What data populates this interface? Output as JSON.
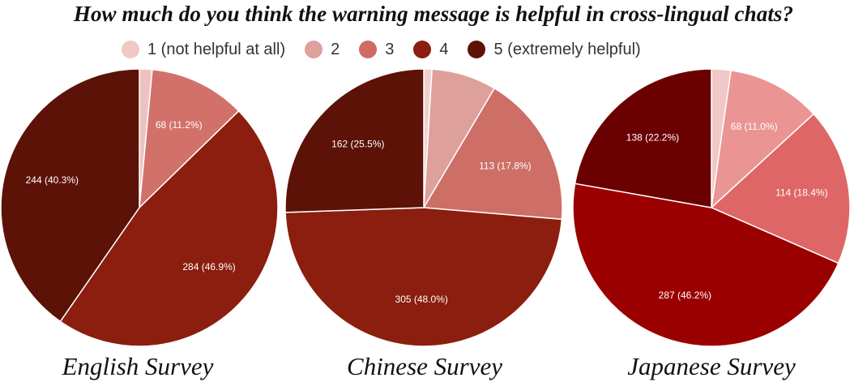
{
  "title": "How much do you think the warning message is helpful in cross-lingual chats?",
  "legend": [
    {
      "label": "1 (not helpful at all)",
      "color": "#f0c8c6"
    },
    {
      "label": "2",
      "color": "#e0a09c"
    },
    {
      "label": "3",
      "color": "#cf6b63"
    },
    {
      "label": "4",
      "color": "#8b1e0f"
    },
    {
      "label": "5 (extremely helpful)",
      "color": "#5c1206"
    }
  ],
  "chart_data": [
    {
      "type": "pie",
      "title": "English Survey",
      "categories": [
        "1 (not helpful at all)",
        "2",
        "3",
        "4",
        "5 (extremely helpful)"
      ],
      "values": [
        9,
        0,
        68,
        284,
        244
      ],
      "colors": [
        "#eec2c0",
        "#e0a09c",
        "#d2716a",
        "#8b1e0f",
        "#5c1206"
      ],
      "labels": [
        "",
        "",
        "68 (11.2%)",
        "284 (46.9%)",
        "244 (40.3%)"
      ]
    },
    {
      "type": "pie",
      "title": "Chinese Survey",
      "categories": [
        "1 (not helpful at all)",
        "2",
        "3",
        "4",
        "5 (extremely helpful)"
      ],
      "values": [
        6,
        48,
        113,
        305,
        162
      ],
      "colors": [
        "#f1cfcd",
        "#dda09b",
        "#cd6f66",
        "#8b1e0f",
        "#5c1206"
      ],
      "labels": [
        "",
        "",
        "113 (17.8%)",
        "305 (48.0%)",
        "162 (25.5%)"
      ]
    },
    {
      "type": "pie",
      "title": "Japanese Survey",
      "categories": [
        "1 (not helpful at all)",
        "2",
        "3",
        "4",
        "5 (extremely helpful)"
      ],
      "values": [
        14,
        68,
        114,
        287,
        138
      ],
      "colors": [
        "#f2c7c7",
        "#ea9593",
        "#df6666",
        "#9b0000",
        "#6b0000"
      ],
      "labels": [
        "",
        "68 (11.0%)",
        "114 (18.4%)",
        "287 (46.2%)",
        "138 (22.2%)"
      ]
    }
  ]
}
